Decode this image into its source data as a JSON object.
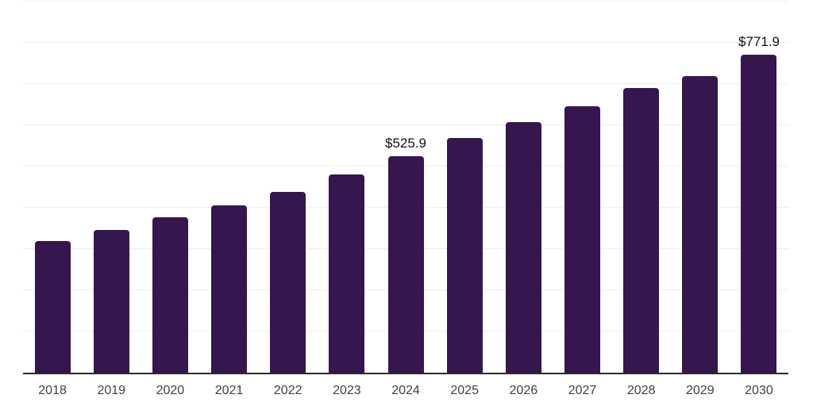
{
  "chart_data": {
    "type": "bar",
    "title": "",
    "xlabel": "",
    "ylabel": "",
    "categories": [
      "2018",
      "2019",
      "2020",
      "2021",
      "2022",
      "2023",
      "2024",
      "2025",
      "2026",
      "2027",
      "2028",
      "2029",
      "2030"
    ],
    "values": [
      320,
      347,
      377,
      406,
      439,
      480,
      525.9,
      570,
      607,
      646,
      690,
      720,
      771.9
    ],
    "data_labels": [
      {
        "category": "2024",
        "text": "$525.9"
      },
      {
        "category": "2030",
        "text": "$771.9"
      }
    ],
    "ylim": [
      0,
      900
    ],
    "gridline_step": 100,
    "grid": "horizontal-only",
    "legend": "none",
    "y_tick_labels_visible": false,
    "colors": {
      "bar": "#35164f",
      "gridline": "#efefef",
      "axis_line": "#2b2b2b",
      "tick_label": "#404040",
      "data_label": "#111111",
      "background": "#ffffff"
    }
  }
}
